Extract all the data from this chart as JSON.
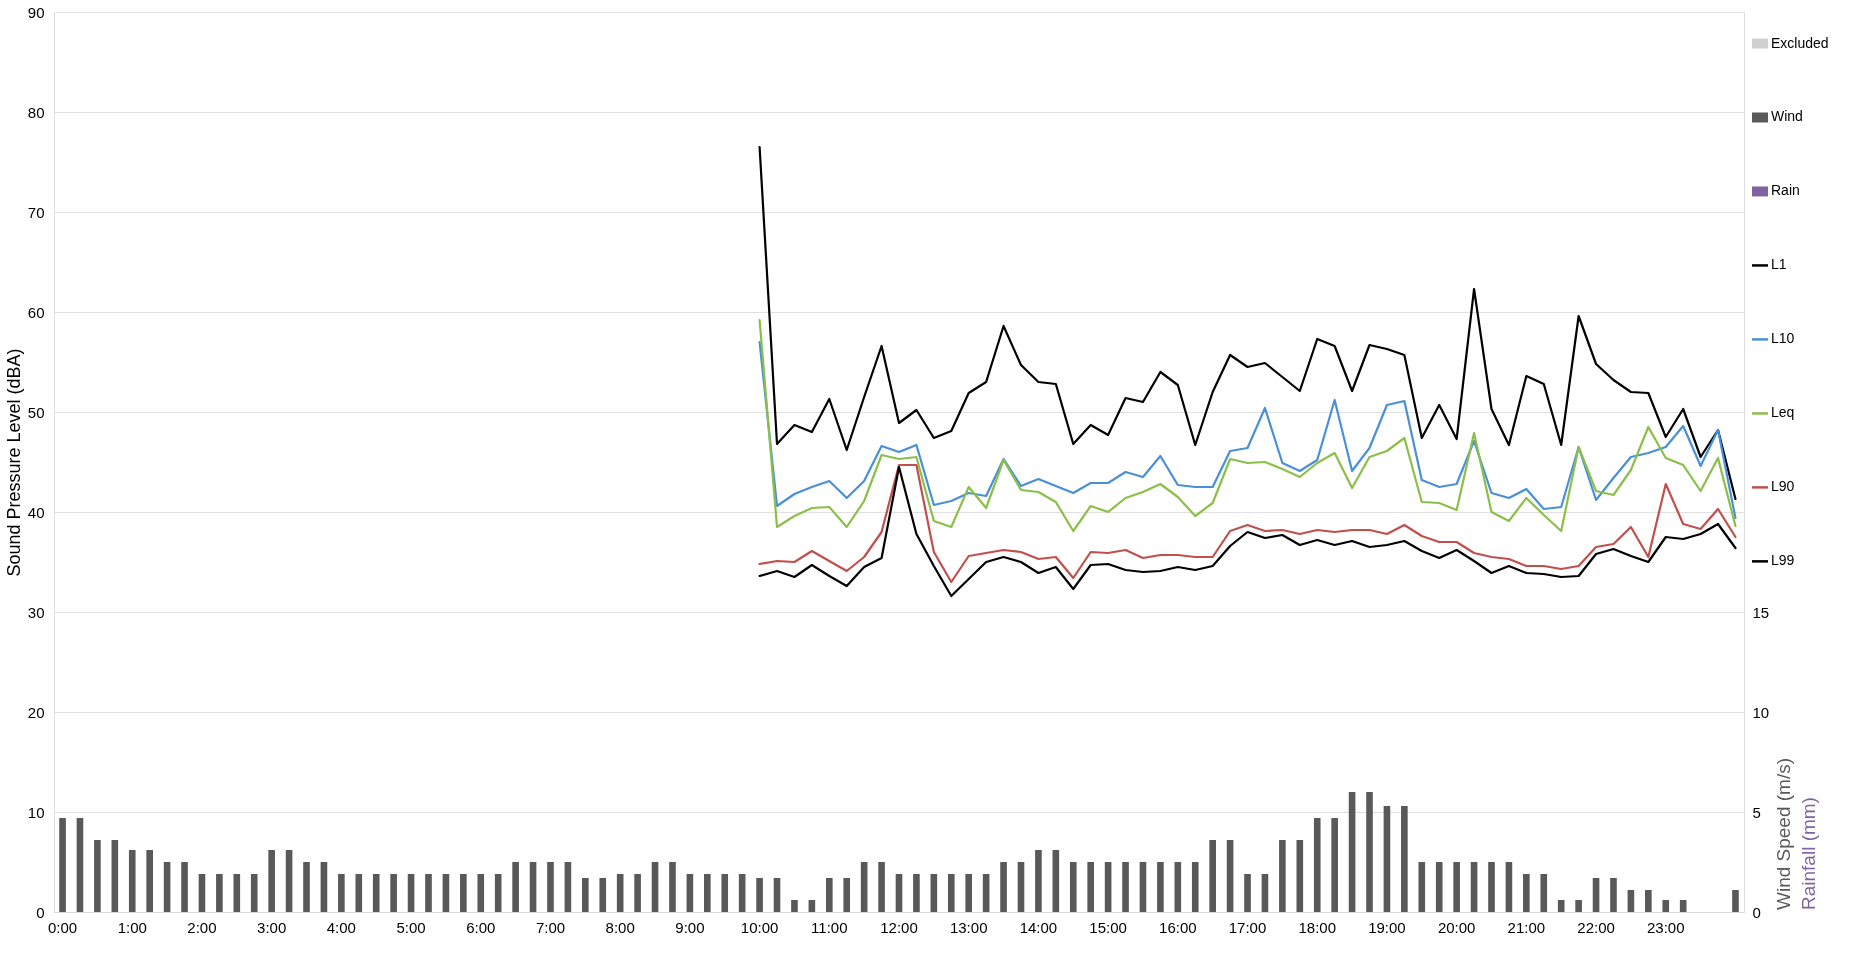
{
  "chart_data": {
    "type": "line",
    "ylabel": "Sound Pressure Level (dBA)",
    "y2label": "Wind Speed (m/s)\nRainfall (mm)",
    "categories": [
      "0:00",
      null,
      null,
      null,
      "1:00",
      null,
      null,
      null,
      "2:00",
      null,
      null,
      null,
      "3:00",
      null,
      null,
      null,
      "4:00",
      null,
      null,
      null,
      "5:00",
      null,
      null,
      null,
      "6:00",
      null,
      null,
      null,
      "7:00",
      null,
      null,
      null,
      "8:00",
      null,
      null,
      null,
      "9:00",
      null,
      null,
      null,
      "10:00",
      null,
      null,
      null,
      "11:00",
      null,
      null,
      null,
      "12:00",
      null,
      null,
      null,
      "13:00",
      null,
      null,
      null,
      "14:00",
      null,
      null,
      null,
      "15:00",
      null,
      null,
      null,
      "16:00",
      null,
      null,
      null,
      "17:00",
      null,
      null,
      null,
      "18:00",
      null,
      null,
      null,
      "19:00",
      null,
      null,
      null,
      "20:00",
      null,
      null,
      null,
      "21:00",
      null,
      null,
      null,
      "22:00",
      null,
      null,
      null,
      "23:00",
      null,
      null,
      null,
      null
    ],
    "ylim": [
      0,
      90
    ],
    "yticks": [
      0,
      10,
      20,
      30,
      40,
      50,
      60,
      70,
      80,
      90
    ],
    "y2lim": [
      0,
      45
    ],
    "y2ticks": [
      0,
      5,
      10,
      15
    ],
    "grid": "y",
    "legend": "right",
    "series": [
      {
        "name": "Excluded",
        "type": "bar",
        "color": "#d0d0d0",
        "values": [
          null,
          null,
          null,
          null,
          null,
          null,
          null,
          null,
          null,
          null,
          null,
          null,
          null,
          null,
          null,
          null,
          null,
          null,
          null,
          null,
          null,
          null,
          null,
          null,
          null,
          null,
          null,
          null,
          null,
          null,
          null,
          null,
          null,
          null,
          null,
          null,
          null,
          null,
          null,
          null,
          null,
          null,
          null,
          null,
          null,
          null,
          null,
          null,
          null,
          null,
          null,
          null,
          null,
          null,
          null,
          null,
          null,
          null,
          null,
          null,
          null,
          null,
          null,
          null,
          null,
          null,
          null,
          null,
          null,
          null,
          null,
          null,
          null,
          null,
          null,
          null,
          null,
          null,
          null,
          null,
          null,
          null,
          null,
          null,
          null,
          null,
          null,
          null,
          null,
          null,
          null,
          null,
          null,
          null,
          null,
          null,
          null
        ]
      },
      {
        "name": "Wind",
        "type": "bar",
        "axis": "y2",
        "color": "#595959",
        "values": [
          4.7,
          4.7,
          3.6,
          3.6,
          3.1,
          3.1,
          2.5,
          2.5,
          1.9,
          1.9,
          1.9,
          1.9,
          3.1,
          3.1,
          2.5,
          2.5,
          1.9,
          1.9,
          1.9,
          1.9,
          1.9,
          1.9,
          1.9,
          1.9,
          1.9,
          1.9,
          2.5,
          2.5,
          2.5,
          2.5,
          1.7,
          1.7,
          1.9,
          1.9,
          2.5,
          2.5,
          1.9,
          1.9,
          1.9,
          1.9,
          1.7,
          1.7,
          0.6,
          0.6,
          1.7,
          1.7,
          2.5,
          2.5,
          1.9,
          1.9,
          1.9,
          1.9,
          1.9,
          1.9,
          2.5,
          2.5,
          3.1,
          3.1,
          2.5,
          2.5,
          2.5,
          2.5,
          2.5,
          2.5,
          2.5,
          2.5,
          3.6,
          3.6,
          1.9,
          1.9,
          3.6,
          3.6,
          4.7,
          4.7,
          6.0,
          6.0,
          5.3,
          5.3,
          2.5,
          2.5,
          2.5,
          2.5,
          2.5,
          2.5,
          1.9,
          1.9,
          0.6,
          0.6,
          1.7,
          1.7,
          1.1,
          1.1,
          0.6,
          0.6,
          null,
          null,
          1.1
        ]
      },
      {
        "name": "Rain",
        "type": "bar",
        "axis": "y2",
        "color": "#8064a2",
        "values": [
          null,
          null,
          null,
          null,
          null,
          null,
          null,
          null,
          null,
          null,
          null,
          null,
          null,
          null,
          null,
          null,
          null,
          null,
          null,
          null,
          null,
          null,
          null,
          null,
          null,
          null,
          null,
          null,
          null,
          null,
          null,
          null,
          null,
          null,
          null,
          null,
          null,
          null,
          null,
          null,
          null,
          null,
          null,
          null,
          null,
          null,
          null,
          null,
          null,
          null,
          null,
          null,
          null,
          null,
          null,
          null,
          null,
          null,
          null,
          null,
          null,
          null,
          null,
          null,
          null,
          null,
          null,
          null,
          null,
          null,
          null,
          null,
          null,
          null,
          null,
          null,
          null,
          null,
          null,
          null,
          null,
          null,
          null,
          null,
          null,
          null,
          null,
          null,
          null,
          null,
          null,
          null,
          null,
          null,
          null,
          null,
          null
        ]
      },
      {
        "name": "L1",
        "color": "#000000",
        "values": [
          null,
          null,
          null,
          null,
          null,
          null,
          null,
          null,
          null,
          null,
          null,
          null,
          null,
          null,
          null,
          null,
          null,
          null,
          null,
          null,
          null,
          null,
          null,
          null,
          null,
          null,
          null,
          null,
          null,
          null,
          null,
          null,
          null,
          null,
          null,
          null,
          null,
          null,
          null,
          null,
          76.5,
          46.8,
          48.7,
          48.0,
          51.3,
          46.2,
          51.5,
          56.6,
          48.9,
          50.2,
          47.4,
          48.1,
          51.9,
          53.0,
          58.6,
          54.7,
          53.0,
          52.8,
          46.8,
          48.7,
          47.7,
          51.4,
          51.0,
          54.0,
          52.7,
          46.7,
          52.0,
          55.7,
          54.5,
          54.9,
          53.5,
          52.1,
          57.3,
          56.6,
          52.1,
          56.7,
          56.3,
          55.7,
          47.4,
          50.7,
          47.3,
          62.3,
          50.3,
          46.7,
          53.6,
          52.8,
          46.7,
          59.6,
          54.8,
          53.2,
          52.0,
          51.9,
          47.5,
          50.3,
          45.5,
          48.2,
          41.3
        ]
      },
      {
        "name": "L10",
        "color": "#4a90d9",
        "values": [
          null,
          null,
          null,
          null,
          null,
          null,
          null,
          null,
          null,
          null,
          null,
          null,
          null,
          null,
          null,
          null,
          null,
          null,
          null,
          null,
          null,
          null,
          null,
          null,
          null,
          null,
          null,
          null,
          null,
          null,
          null,
          null,
          null,
          null,
          null,
          null,
          null,
          null,
          null,
          null,
          57.0,
          40.6,
          41.8,
          42.5,
          43.1,
          41.4,
          43.1,
          46.6,
          46.0,
          46.7,
          40.7,
          41.1,
          41.9,
          41.6,
          45.3,
          42.6,
          43.3,
          42.6,
          41.9,
          42.9,
          42.9,
          44.0,
          43.5,
          45.6,
          42.7,
          42.5,
          42.5,
          46.1,
          46.4,
          50.4,
          44.9,
          44.1,
          45.2,
          51.2,
          44.1,
          46.4,
          50.7,
          51.1,
          43.2,
          42.5,
          42.8,
          47.1,
          41.9,
          41.4,
          42.3,
          40.3,
          40.5,
          46.5,
          41.2,
          43.4,
          45.5,
          45.9,
          46.5,
          48.6,
          44.6,
          48.2,
          39.4
        ]
      },
      {
        "name": "Leq",
        "color": "#8cbf4a",
        "values": [
          null,
          null,
          null,
          null,
          null,
          null,
          null,
          null,
          null,
          null,
          null,
          null,
          null,
          null,
          null,
          null,
          null,
          null,
          null,
          null,
          null,
          null,
          null,
          null,
          null,
          null,
          null,
          null,
          null,
          null,
          null,
          null,
          null,
          null,
          null,
          null,
          null,
          null,
          null,
          null,
          59.2,
          38.5,
          39.6,
          40.4,
          40.5,
          38.5,
          41.1,
          45.7,
          45.3,
          45.5,
          39.1,
          38.5,
          42.5,
          40.4,
          45.2,
          42.2,
          42.0,
          41.0,
          38.1,
          40.6,
          40.0,
          41.4,
          42.0,
          42.8,
          41.5,
          39.6,
          40.9,
          45.3,
          44.9,
          45.0,
          44.3,
          43.5,
          44.9,
          45.9,
          42.4,
          45.5,
          46.1,
          47.4,
          41.0,
          40.9,
          40.2,
          47.9,
          40.0,
          39.1,
          41.4,
          39.7,
          38.1,
          46.5,
          42.1,
          41.7,
          44.2,
          48.5,
          45.4,
          44.7,
          42.1,
          45.4,
          38.6
        ]
      },
      {
        "name": "L90",
        "color": "#c0504d",
        "values": [
          null,
          null,
          null,
          null,
          null,
          null,
          null,
          null,
          null,
          null,
          null,
          null,
          null,
          null,
          null,
          null,
          null,
          null,
          null,
          null,
          null,
          null,
          null,
          null,
          null,
          null,
          null,
          null,
          null,
          null,
          null,
          null,
          null,
          null,
          null,
          null,
          null,
          null,
          null,
          null,
          34.8,
          35.1,
          35.0,
          36.1,
          35.1,
          34.1,
          35.5,
          38.0,
          44.7,
          44.7,
          36.0,
          33.0,
          35.6,
          35.9,
          36.2,
          36.0,
          35.3,
          35.5,
          33.4,
          36.0,
          35.9,
          36.2,
          35.4,
          35.7,
          35.7,
          35.5,
          35.5,
          38.1,
          38.7,
          38.1,
          38.2,
          37.8,
          38.2,
          38.0,
          38.2,
          38.2,
          37.8,
          38.7,
          37.6,
          37.0,
          37.0,
          35.9,
          35.5,
          35.3,
          34.6,
          34.6,
          34.3,
          34.6,
          36.5,
          36.8,
          38.5,
          35.5,
          42.8,
          38.8,
          38.3,
          40.3,
          37.5
        ]
      },
      {
        "name": "L99",
        "color": "#000000",
        "values": [
          null,
          null,
          null,
          null,
          null,
          null,
          null,
          null,
          null,
          null,
          null,
          null,
          null,
          null,
          null,
          null,
          null,
          null,
          null,
          null,
          null,
          null,
          null,
          null,
          null,
          null,
          null,
          null,
          null,
          null,
          null,
          null,
          null,
          null,
          null,
          null,
          null,
          null,
          null,
          null,
          33.6,
          34.1,
          33.5,
          34.7,
          33.6,
          32.6,
          34.5,
          35.4,
          44.5,
          37.8,
          34.6,
          31.6,
          33.3,
          35.0,
          35.5,
          35.0,
          33.9,
          34.5,
          32.3,
          34.7,
          34.8,
          34.2,
          34.0,
          34.1,
          34.5,
          34.2,
          34.6,
          36.6,
          38.0,
          37.4,
          37.7,
          36.7,
          37.2,
          36.7,
          37.1,
          36.5,
          36.7,
          37.1,
          36.1,
          35.4,
          36.2,
          35.1,
          33.9,
          34.6,
          33.9,
          33.8,
          33.5,
          33.6,
          35.8,
          36.3,
          35.6,
          35.0,
          37.5,
          37.3,
          37.8,
          38.8,
          36.4
        ]
      }
    ]
  }
}
